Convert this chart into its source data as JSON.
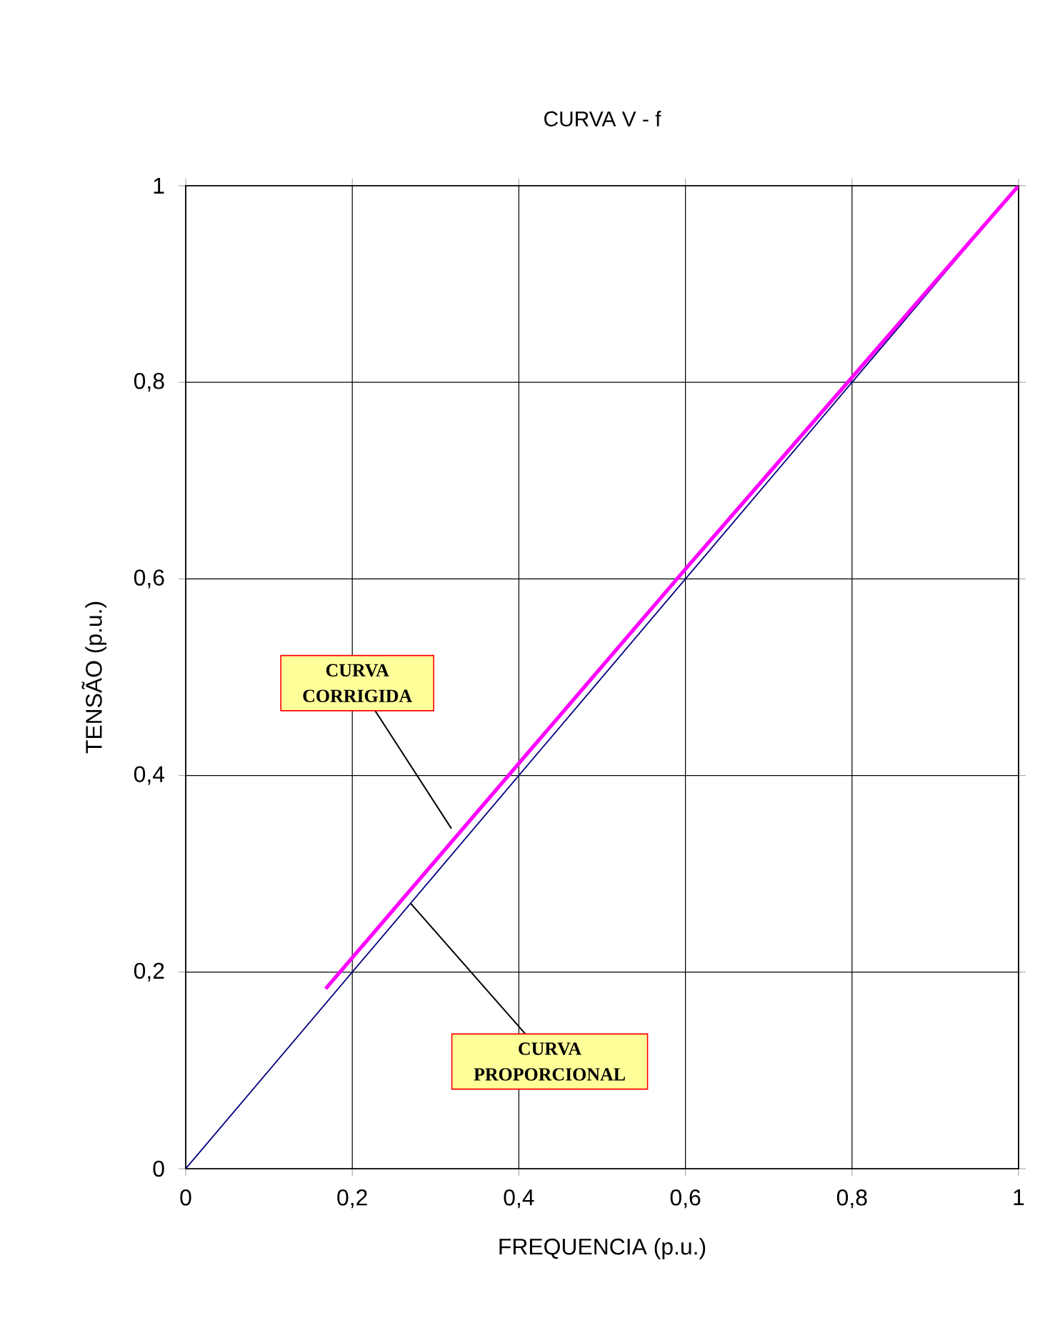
{
  "chart_data": {
    "type": "line",
    "title": "CURVA V - f",
    "xlabel": "FREQUENCIA (p.u.)",
    "ylabel": "TENSÃO (p.u.)",
    "series": [
      {
        "color": "#000080",
        "x": [
          0,
          1
        ],
        "values": [
          0,
          1
        ]
      },
      {
        "color": "#ff00ff",
        "x": [
          0.168,
          0.6,
          1
        ],
        "values": [
          0.183,
          0.61,
          1
        ]
      }
    ],
    "xlim": [
      0,
      1
    ],
    "ylim": [
      0,
      1
    ],
    "xticks": [
      0,
      {
        "value": 0.2,
        "label": "0,2"
      },
      {
        "value": 0.4,
        "label": "0,4"
      },
      {
        "value": 0.6,
        "label": "0,6"
      },
      {
        "value": 0.8,
        "label": "0,8"
      },
      1
    ],
    "yticks": [
      0,
      {
        "value": 0.2,
        "label": "0,2"
      },
      {
        "value": 0.4,
        "label": "0,4"
      },
      {
        "value": 0.6,
        "label": "0,6"
      },
      {
        "value": 0.8,
        "label": "0,8"
      },
      1
    ],
    "grid": true,
    "marker": "none",
    "line_style": "solid",
    "annotations": [
      {
        "text": "CURVA CORRIGIDA",
        "x": 0.319,
        "y": 0.346
      },
      {
        "text": "CURVA PROPORCIONAL",
        "x": 0.27,
        "y": 0.27
      }
    ]
  }
}
